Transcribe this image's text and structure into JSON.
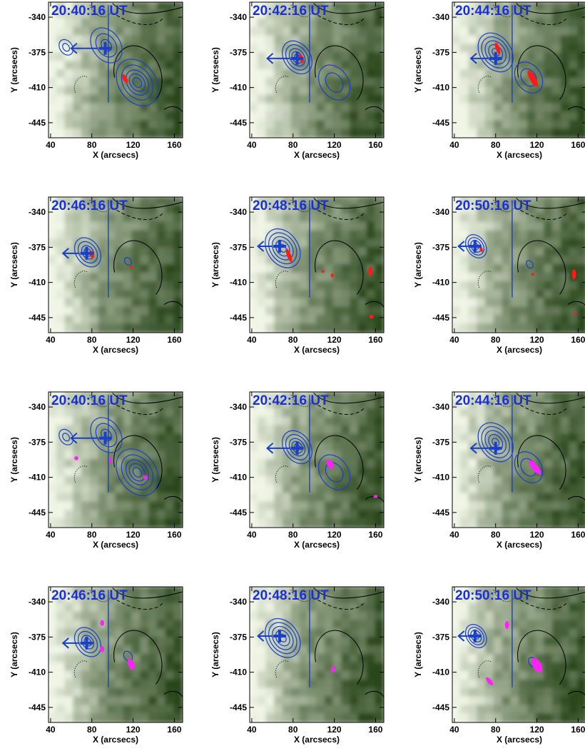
{
  "figure": {
    "rows": 4,
    "cols": 3,
    "colors": {
      "hxr_contour": "#1a3fc8",
      "magnetogram_positive": "#000000",
      "magnetogram_negative": "#000000",
      "kernel_row_a": "#ff1a1a",
      "kernel_row_b": "#ff22ff",
      "background_light": "#f4f9ea",
      "background_dark": "#1f3d10",
      "time_label": "#1a2fd6"
    }
  },
  "chart_data": [
    {
      "type": "heatmap",
      "panel": "r1c1",
      "title": "20:40:16 UT",
      "xlabel": "X (arcsecs)",
      "ylabel": "Y (arcsecs)",
      "x_ticks": [
        "40",
        "80",
        "120",
        "160"
      ],
      "y_ticks": [
        "-340",
        "-375",
        "-410",
        "-445"
      ],
      "xlim": [
        38,
        168
      ],
      "ylim": [
        -460,
        -325
      ],
      "source_center": [
        93,
        -371
      ],
      "arrow_tip": [
        60,
        -371
      ],
      "neutral_line_x": 96,
      "contours": [
        {
          "center": [
            124,
            -405
          ],
          "radii": [
            5,
            9,
            13,
            18,
            24
          ]
        },
        {
          "center": [
            94,
            -368
          ],
          "radii": [
            6,
            12,
            18
          ]
        },
        {
          "center": [
            55,
            -370
          ],
          "radii": [
            4,
            8
          ]
        }
      ],
      "kernels": [
        {
          "x": 112,
          "y": -401,
          "rx": 2,
          "ry": 5,
          "rot": -30
        }
      ],
      "kernel_color": "red"
    },
    {
      "type": "heatmap",
      "panel": "r1c2",
      "title": "20:42:16 UT",
      "xlabel": "X (arcsecs)",
      "ylabel": "Y (arcsecs)",
      "x_ticks": [
        "40",
        "80",
        "120",
        "160"
      ],
      "y_ticks": [
        "-340",
        "-375",
        "-410",
        "-445"
      ],
      "xlim": [
        38,
        168
      ],
      "ylim": [
        -460,
        -325
      ],
      "source_center": [
        84,
        -381
      ],
      "arrow_tip": [
        55,
        -381
      ],
      "neutral_line_x": 96,
      "contours": [
        {
          "center": [
            84,
            -380
          ],
          "radii": [
            3,
            6,
            9,
            13,
            17
          ]
        },
        {
          "center": [
            120,
            -405
          ],
          "radii": [
            10,
            18
          ]
        }
      ],
      "kernels": [
        {
          "x": 88,
          "y": -381,
          "rx": 2,
          "ry": 5,
          "rot": -20
        }
      ],
      "kernel_color": "red"
    },
    {
      "type": "heatmap",
      "panel": "r1c3",
      "title": "20:44:16 UT",
      "xlabel": "X (arcsecs)",
      "ylabel": "Y (arcsecs)",
      "x_ticks": [
        "40",
        "80",
        "120",
        "160"
      ],
      "y_ticks": [
        "-340",
        "-375",
        "-410",
        "-445"
      ],
      "xlim": [
        38,
        168
      ],
      "ylim": [
        -460,
        -325
      ],
      "source_center": [
        80,
        -381
      ],
      "arrow_tip": [
        56,
        -381
      ],
      "neutral_line_x": 96,
      "contours": [
        {
          "center": [
            80,
            -375
          ],
          "radii": [
            4,
            8,
            12,
            16,
            20
          ]
        },
        {
          "center": [
            112,
            -400
          ],
          "radii": [
            9,
            16
          ]
        }
      ],
      "kernels": [
        {
          "x": 82,
          "y": -371,
          "rx": 2,
          "ry": 6,
          "rot": -20
        },
        {
          "x": 116,
          "y": -401,
          "rx": 3,
          "ry": 9,
          "rot": -30
        }
      ],
      "kernel_color": "red"
    },
    {
      "type": "heatmap",
      "panel": "r2c1",
      "title": "20:46:16 UT",
      "xlabel": "X (arcsecs)",
      "ylabel": "Y (arcsecs)",
      "x_ticks": [
        "40",
        "80",
        "120",
        "160"
      ],
      "y_ticks": [
        "-340",
        "-375",
        "-410",
        "-445"
      ],
      "xlim": [
        38,
        168
      ],
      "ylim": [
        -460,
        -325
      ],
      "source_center": [
        75,
        -381
      ],
      "arrow_tip": [
        52,
        -381
      ],
      "neutral_line_x": 96,
      "contours": [
        {
          "center": [
            76,
            -380
          ],
          "radii": [
            4,
            7,
            11,
            15
          ]
        },
        {
          "center": [
            115,
            -389
          ],
          "radii": [
            4
          ]
        }
      ],
      "kernels": [
        {
          "x": 80,
          "y": -382,
          "rx": 2,
          "ry": 4,
          "rot": -20
        },
        {
          "x": 118,
          "y": -395,
          "rx": 1,
          "ry": 1,
          "rot": 0
        }
      ],
      "kernel_color": "red"
    },
    {
      "type": "heatmap",
      "panel": "r2c2",
      "title": "20:48:16 UT",
      "xlabel": "X (arcsecs)",
      "ylabel": "Y (arcsecs)",
      "x_ticks": [
        "40",
        "80",
        "120",
        "160"
      ],
      "y_ticks": [
        "-340",
        "-375",
        "-410",
        "-445"
      ],
      "xlim": [
        38,
        168
      ],
      "ylim": [
        -460,
        -325
      ],
      "source_center": [
        67,
        -374
      ],
      "arrow_tip": [
        46,
        -374
      ],
      "neutral_line_x": 96,
      "contours": [
        {
          "center": [
            70,
            -376
          ],
          "radii": [
            4,
            8,
            12,
            16,
            20
          ]
        }
      ],
      "kernels": [
        {
          "x": 76,
          "y": -383,
          "rx": 2,
          "ry": 7,
          "rot": -20
        },
        {
          "x": 155,
          "y": -399,
          "rx": 2,
          "ry": 5,
          "rot": 0
        },
        {
          "x": 118,
          "y": -403,
          "rx": 1,
          "ry": 2,
          "rot": 0
        },
        {
          "x": 109,
          "y": -399,
          "rx": 1,
          "ry": 1,
          "rot": 0
        },
        {
          "x": 156,
          "y": -444,
          "rx": 2,
          "ry": 2,
          "rot": 0
        }
      ],
      "kernel_color": "red"
    },
    {
      "type": "heatmap",
      "panel": "r2c3",
      "title": "20:50:16 UT",
      "xlabel": "X (arcsecs)",
      "ylabel": "Y (arcsecs)",
      "x_ticks": [
        "40",
        "80",
        "120",
        "160"
      ],
      "y_ticks": [
        "-340",
        "-375",
        "-410",
        "-445"
      ],
      "xlim": [
        38,
        168
      ],
      "ylim": [
        -460,
        -325
      ],
      "source_center": [
        60,
        -374
      ],
      "arrow_tip": [
        44,
        -374
      ],
      "neutral_line_x": 96,
      "contours": [
        {
          "center": [
            61,
            -374
          ],
          "radii": [
            3,
            6,
            9,
            12
          ]
        },
        {
          "center": [
            113,
            -392
          ],
          "radii": [
            4
          ]
        }
      ],
      "kernels": [
        {
          "x": 66,
          "y": -377,
          "rx": 1,
          "ry": 3,
          "rot": -20
        },
        {
          "x": 156,
          "y": -402,
          "rx": 2,
          "ry": 5,
          "rot": 0
        },
        {
          "x": 116,
          "y": -402,
          "rx": 1,
          "ry": 1,
          "rot": 0
        },
        {
          "x": 157,
          "y": -441,
          "rx": 1,
          "ry": 1,
          "rot": 0
        }
      ],
      "kernel_color": "red"
    },
    {
      "type": "heatmap",
      "panel": "r3c1",
      "title": "20:40:16 UT",
      "xlabel": "X (arcsecs)",
      "ylabel": "Y (arcsecs)",
      "x_ticks": [
        "40",
        "80",
        "120",
        "160"
      ],
      "y_ticks": [
        "-340",
        "-375",
        "-410",
        "-445"
      ],
      "xlim": [
        38,
        168
      ],
      "ylim": [
        -460,
        -325
      ],
      "source_center": [
        93,
        -371
      ],
      "arrow_tip": [
        60,
        -371
      ],
      "neutral_line_x": 96,
      "contours": [
        {
          "center": [
            124,
            -405
          ],
          "radii": [
            5,
            9,
            13,
            18,
            24
          ]
        },
        {
          "center": [
            94,
            -368
          ],
          "radii": [
            6,
            12,
            18
          ]
        },
        {
          "center": [
            55,
            -370
          ],
          "radii": [
            4,
            8
          ]
        }
      ],
      "kernels": [
        {
          "x": 65,
          "y": -391,
          "rx": 2,
          "ry": 2,
          "rot": 0
        },
        {
          "x": 98,
          "y": -393,
          "rx": 1,
          "ry": 3,
          "rot": 0
        },
        {
          "x": 132,
          "y": -410,
          "rx": 2,
          "ry": 2,
          "rot": 0
        }
      ],
      "kernel_color": "magenta"
    },
    {
      "type": "heatmap",
      "panel": "r3c2",
      "title": "20:42:16 UT",
      "xlabel": "X (arcsecs)",
      "ylabel": "Y (arcsecs)",
      "x_ticks": [
        "40",
        "80",
        "120",
        "160"
      ],
      "y_ticks": [
        "-340",
        "-375",
        "-410",
        "-445"
      ],
      "xlim": [
        38,
        168
      ],
      "ylim": [
        -460,
        -325
      ],
      "source_center": [
        84,
        -381
      ],
      "arrow_tip": [
        55,
        -381
      ],
      "neutral_line_x": 96,
      "contours": [
        {
          "center": [
            84,
            -380
          ],
          "radii": [
            3,
            6,
            9,
            13,
            17
          ]
        },
        {
          "center": [
            120,
            -405
          ],
          "radii": [
            10,
            18
          ]
        }
      ],
      "kernels": [
        {
          "x": 116,
          "y": -397,
          "rx": 3,
          "ry": 5,
          "rot": -30
        },
        {
          "x": 160,
          "y": -429,
          "rx": 2,
          "ry": 1,
          "rot": 0
        }
      ],
      "kernel_color": "magenta"
    },
    {
      "type": "heatmap",
      "panel": "r3c3",
      "title": "20:44:16 UT",
      "xlabel": "X (arcsecs)",
      "ylabel": "Y (arcsecs)",
      "x_ticks": [
        "40",
        "80",
        "120",
        "160"
      ],
      "y_ticks": [
        "-340",
        "-375",
        "-410",
        "-445"
      ],
      "xlim": [
        38,
        168
      ],
      "ylim": [
        -460,
        -325
      ],
      "source_center": [
        80,
        -381
      ],
      "arrow_tip": [
        56,
        -381
      ],
      "neutral_line_x": 96,
      "contours": [
        {
          "center": [
            80,
            -375
          ],
          "radii": [
            4,
            8,
            12,
            16,
            20
          ]
        },
        {
          "center": [
            112,
            -400
          ],
          "radii": [
            9,
            16
          ]
        }
      ],
      "kernels": [
        {
          "x": 118,
          "y": -400,
          "rx": 3,
          "ry": 9,
          "rot": -40
        }
      ],
      "kernel_color": "magenta"
    },
    {
      "type": "heatmap",
      "panel": "r4c1",
      "title": "20:46:16 UT",
      "xlabel": "X (arcsecs)",
      "ylabel": "Y (arcsecs)",
      "x_ticks": [
        "40",
        "80",
        "120",
        "160"
      ],
      "y_ticks": [
        "-340",
        "-375",
        "-410",
        "-445"
      ],
      "xlim": [
        38,
        168
      ],
      "ylim": [
        -460,
        -325
      ],
      "source_center": [
        75,
        -381
      ],
      "arrow_tip": [
        52,
        -381
      ],
      "neutral_line_x": 96,
      "contours": [
        {
          "center": [
            76,
            -380
          ],
          "radii": [
            4,
            7,
            11,
            15
          ]
        },
        {
          "center": [
            115,
            -394
          ],
          "radii": [
            5
          ]
        }
      ],
      "kernels": [
        {
          "x": 90,
          "y": -361,
          "rx": 2,
          "ry": 3,
          "rot": 0
        },
        {
          "x": 90,
          "y": -387,
          "rx": 2,
          "ry": 3,
          "rot": 0
        },
        {
          "x": 118,
          "y": -402,
          "rx": 3,
          "ry": 6,
          "rot": -20
        }
      ],
      "kernel_color": "magenta"
    },
    {
      "type": "heatmap",
      "panel": "r4c2",
      "title": "20:48:16 UT",
      "xlabel": "X (arcsecs)",
      "ylabel": "Y (arcsecs)",
      "x_ticks": [
        "40",
        "80",
        "120",
        "160"
      ],
      "y_ticks": [
        "-340",
        "-375",
        "-410",
        "-445"
      ],
      "xlim": [
        38,
        168
      ],
      "ylim": [
        -460,
        -325
      ],
      "source_center": [
        67,
        -374
      ],
      "arrow_tip": [
        46,
        -374
      ],
      "neutral_line_x": 96,
      "contours": [
        {
          "center": [
            70,
            -376
          ],
          "radii": [
            4,
            8,
            12,
            16,
            20
          ]
        }
      ],
      "kernels": [
        {
          "x": 119,
          "y": -407,
          "rx": 2,
          "ry": 3,
          "rot": 0
        }
      ],
      "kernel_color": "magenta"
    },
    {
      "type": "heatmap",
      "panel": "r4c3",
      "title": "20:50:16 UT",
      "xlabel": "X (arcsecs)",
      "ylabel": "Y (arcsecs)",
      "x_ticks": [
        "40",
        "80",
        "120",
        "160"
      ],
      "y_ticks": [
        "-340",
        "-375",
        "-410",
        "-445"
      ],
      "xlim": [
        38,
        168
      ],
      "ylim": [
        -460,
        -325
      ],
      "source_center": [
        60,
        -374
      ],
      "arrow_tip": [
        44,
        -374
      ],
      "neutral_line_x": 96,
      "contours": [
        {
          "center": [
            61,
            -374
          ],
          "radii": [
            3,
            6,
            9,
            12
          ]
        },
        {
          "center": [
            116,
            -400
          ],
          "radii": [
            5
          ]
        }
      ],
      "kernels": [
        {
          "x": 91,
          "y": -363,
          "rx": 2,
          "ry": 4,
          "rot": 0
        },
        {
          "x": 74,
          "y": -419,
          "rx": 2,
          "ry": 5,
          "rot": -40
        },
        {
          "x": 120,
          "y": -403,
          "rx": 4,
          "ry": 8,
          "rot": -30
        }
      ],
      "kernel_color": "magenta"
    }
  ]
}
